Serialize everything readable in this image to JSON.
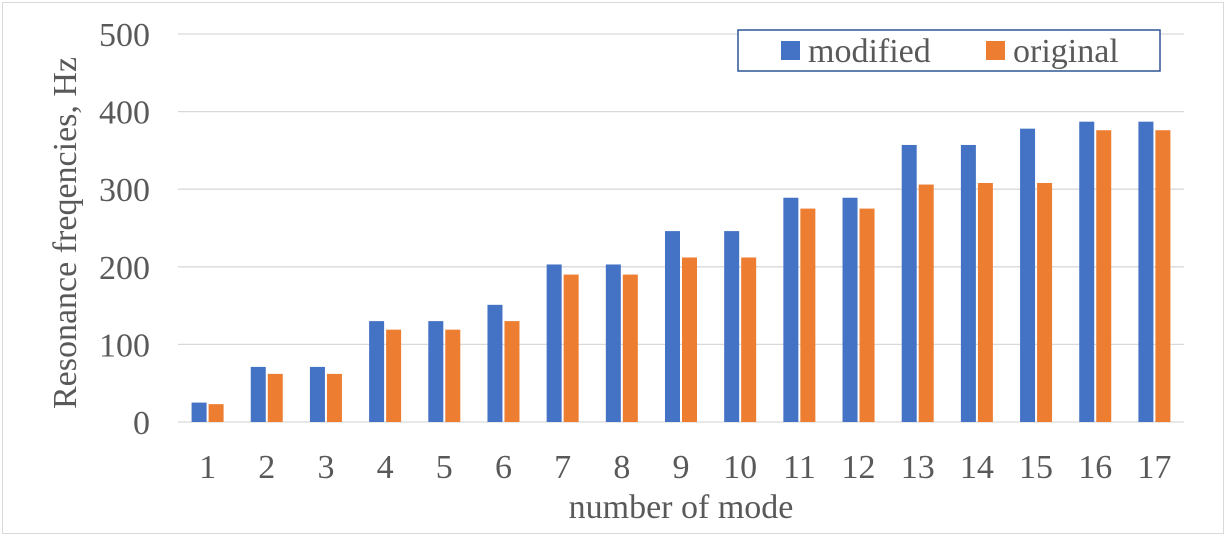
{
  "chart_data": {
    "type": "bar",
    "xlabel": "number of mode",
    "ylabel": "Resonance freqencies, Hz",
    "ylim": [
      0,
      500
    ],
    "yticks": [
      0,
      100,
      200,
      300,
      400,
      500
    ],
    "grid": true,
    "legend_position": "top-right",
    "categories": [
      "1",
      "2",
      "3",
      "4",
      "5",
      "6",
      "7",
      "8",
      "9",
      "10",
      "11",
      "12",
      "13",
      "14",
      "15",
      "16",
      "17"
    ],
    "series": [
      {
        "name": "modified",
        "color": "#4472c4",
        "values": [
          25,
          71,
          71,
          130,
          130,
          151,
          203,
          203,
          246,
          246,
          289,
          289,
          357,
          357,
          378,
          387,
          387
        ]
      },
      {
        "name": "original",
        "color": "#ed7d31",
        "values": [
          23,
          62,
          62,
          119,
          119,
          130,
          190,
          190,
          212,
          212,
          275,
          275,
          306,
          308,
          308,
          376,
          376
        ]
      }
    ]
  },
  "legend_border_color": "#2f5597",
  "grid_color": "#d9d9d9"
}
